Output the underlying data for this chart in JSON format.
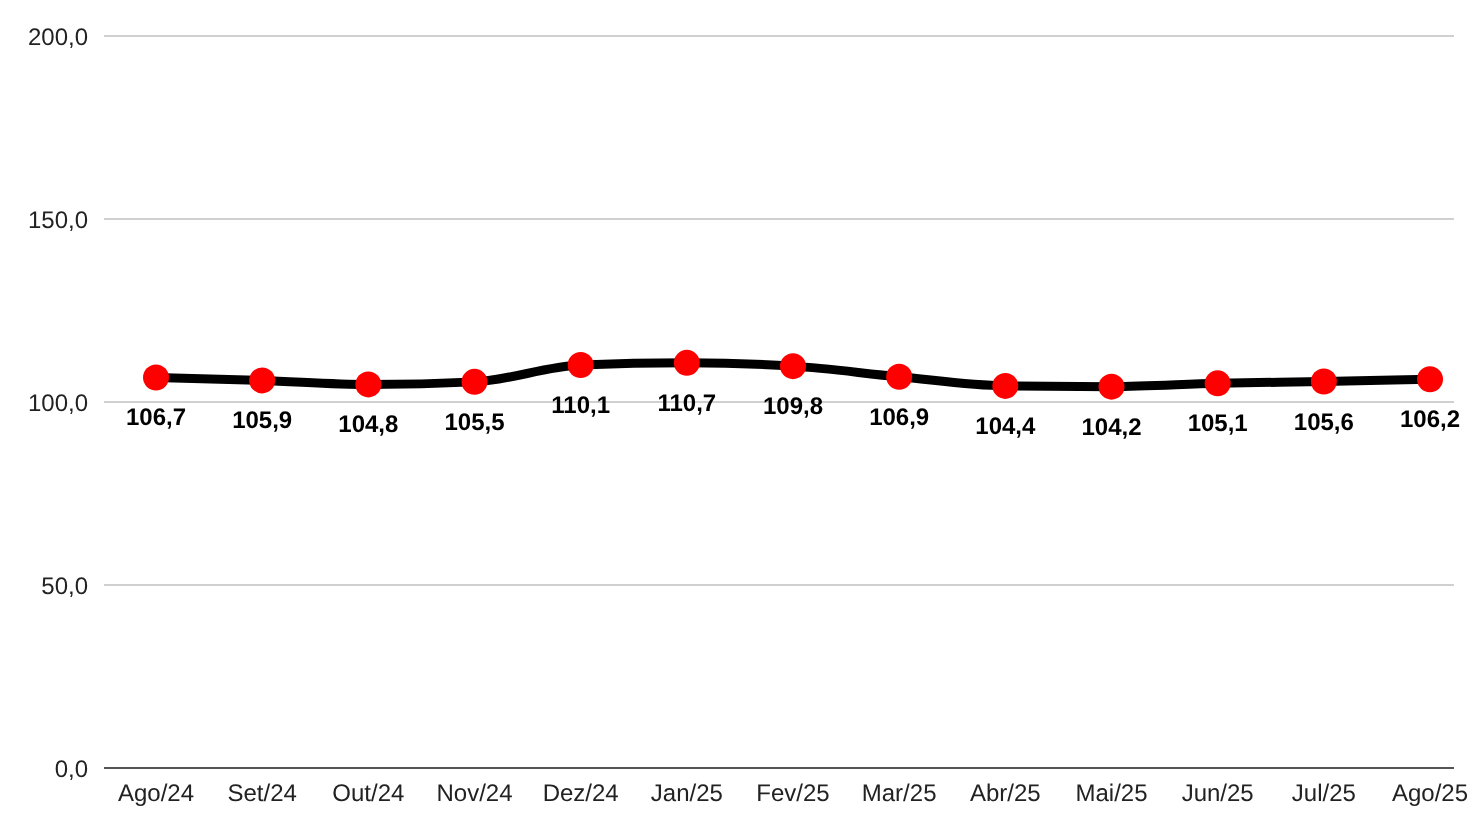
{
  "chart_data": {
    "type": "line",
    "categories": [
      "Ago/24",
      "Set/24",
      "Out/24",
      "Nov/24",
      "Dez/24",
      "Jan/25",
      "Fev/25",
      "Mar/25",
      "Abr/25",
      "Mai/25",
      "Jun/25",
      "Jul/25",
      "Ago/25"
    ],
    "series": [
      {
        "color": "#000000",
        "colors": [
          "#ff0000",
          "#ff0000",
          "#ff0000",
          "#ff0000",
          "#ff0000",
          "#ff0000",
          "#ff0000",
          "#ff0000",
          "#ff0000",
          "#ff0000",
          "#ff0000",
          "#ff0000",
          "#ff0000"
        ],
        "values": [
          106.7,
          105.9,
          104.8,
          105.5,
          110.1,
          110.7,
          109.8,
          106.9,
          104.4,
          104.2,
          105.1,
          105.6,
          106.2
        ],
        "value_labels": [
          "106,7",
          "105,9",
          "104,8",
          "105,5",
          "110,1",
          "110,7",
          "109,8",
          "106,9",
          "104,4",
          "104,2",
          "105,1",
          "105,6",
          "106,2"
        ]
      }
    ],
    "ylim": [
      0,
      200
    ],
    "yticks": [
      {
        "value": 0,
        "label": "0,0"
      },
      {
        "value": 50,
        "label": "50,0"
      },
      {
        "value": 100,
        "label": "100,0"
      },
      {
        "value": 150,
        "label": "150,0"
      },
      {
        "value": 200,
        "label": "200,0"
      }
    ],
    "grid": "y",
    "marker": "circle",
    "line_style": "solid"
  }
}
